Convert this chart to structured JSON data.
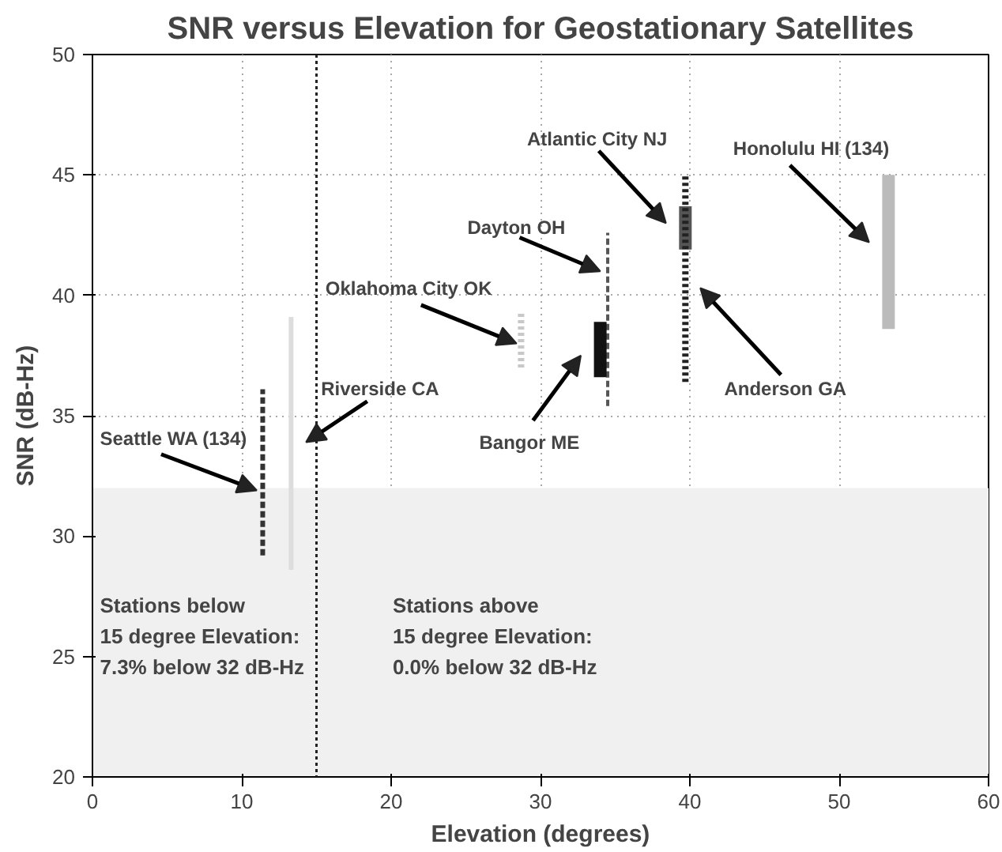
{
  "chart_data": {
    "type": "line",
    "title": "SNR versus Elevation for Geostationary Satellites",
    "xlabel": "Elevation (degrees)",
    "ylabel": "SNR (dB-Hz)",
    "xlim": [
      0,
      60
    ],
    "ylim": [
      20,
      50
    ],
    "xticks": [
      0,
      10,
      20,
      30,
      40,
      50,
      60
    ],
    "yticks": [
      20,
      25,
      30,
      35,
      40,
      45,
      50
    ],
    "grid": true,
    "series": [
      {
        "name": "Seattle WA (134)",
        "color": "#333333",
        "line_style": "dashed",
        "x": [
          11.4,
          11.4
        ],
        "values": [
          29.2,
          36.1
        ]
      },
      {
        "name": "Riverside CA",
        "color": "#dddddd",
        "line_style": "solid",
        "x": [
          13.3,
          13.3
        ],
        "values": [
          28.6,
          39.1
        ]
      },
      {
        "name": "Oklahoma City OK",
        "color": "#c8c8c8",
        "line_style": "dotted",
        "x": [
          28.7,
          28.7
        ],
        "values": [
          37.0,
          39.3
        ]
      },
      {
        "name": "Dayton OH",
        "color": "#555555",
        "line_style": "dashed",
        "x": [
          34.5,
          34.5
        ],
        "values": [
          35.4,
          42.6
        ]
      },
      {
        "name": "Bangor ME",
        "color": "#111111",
        "line_style": "solid",
        "x": [
          34.0,
          34.0
        ],
        "values": [
          36.6,
          38.9
        ]
      },
      {
        "name": "Atlantic City NJ",
        "color": "#555555",
        "line_style": "solid",
        "x": [
          39.7,
          39.7
        ],
        "values": [
          41.9,
          43.7
        ]
      },
      {
        "name": "Anderson GA",
        "color": "#222222",
        "line_style": "dotted",
        "x": [
          39.7,
          39.7
        ],
        "values": [
          36.4,
          45.0
        ]
      },
      {
        "name": "Honolulu HI (134)",
        "color": "#bbbbbb",
        "line_style": "solid",
        "x": [
          53.3,
          53.3
        ],
        "values": [
          38.6,
          45.0
        ]
      }
    ],
    "ref_lines": [
      {
        "axis": "x",
        "value": 15,
        "color": "#222222",
        "line_style": "dotted"
      }
    ],
    "bands": [
      {
        "axis": "y",
        "from": 20,
        "to": 32,
        "color": "#f0f0f0"
      }
    ],
    "annotations": [
      "Stations below\n15 degree Elevation:\n7.3% below 32 dB-Hz",
      "Stations above\n15 degree Elevation:\n0.0% below 32 dB-Hz"
    ]
  }
}
